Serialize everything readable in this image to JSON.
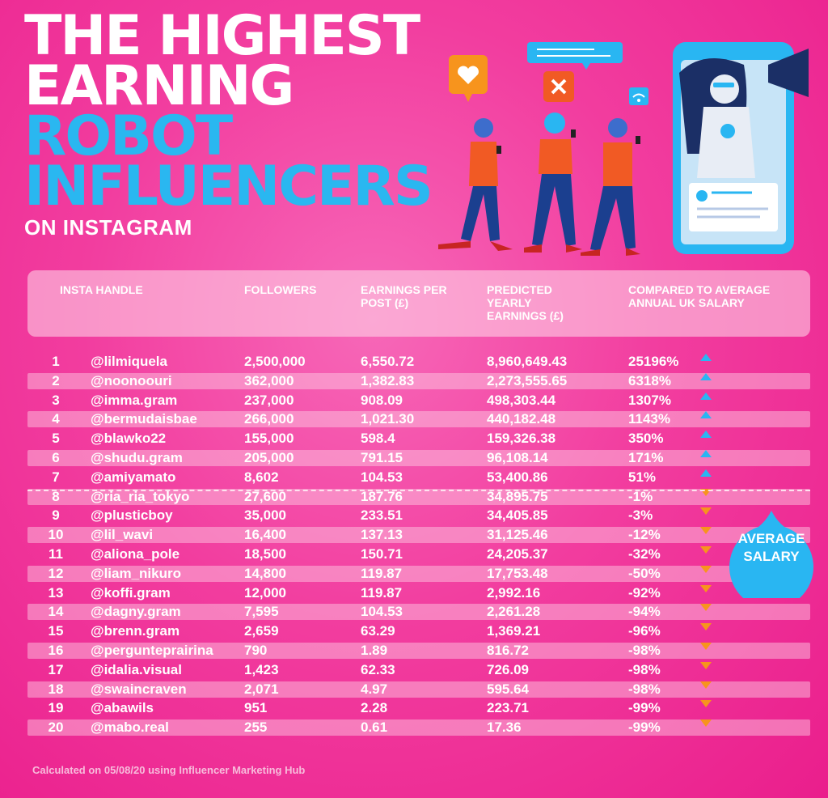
{
  "title": {
    "line1": "THE HIGHEST",
    "line2": "EARNING",
    "line3": "ROBOT",
    "line4": "INFLUENCERS",
    "line5": "ON INSTAGRAM"
  },
  "colors": {
    "background": "#ea1e8c",
    "accent_blue": "#2ab7f0",
    "up_arrow": "#29b6f2",
    "down_arrow": "#f7941d"
  },
  "chart_data": {
    "type": "table",
    "columns": [
      "INSTA HANDLE",
      "FOLLOWERS",
      "EARNINGS PER POST (£)",
      "PREDICTED YEARLY EARNINGS (£)",
      "COMPARED TO AVERAGE ANNUAL UK SALARY"
    ],
    "rows": [
      {
        "rank": "1",
        "handle": "@lilmiquela",
        "followers": "2,500,000",
        "earnings_per_post": "6,550.72",
        "yearly": "8,960,649.43",
        "compared": "25196%",
        "trend": "up"
      },
      {
        "rank": "2",
        "handle": "@noonoouri",
        "followers": "362,000",
        "earnings_per_post": "1,382.83",
        "yearly": "2,273,555.65",
        "compared": "6318%",
        "trend": "up"
      },
      {
        "rank": "3",
        "handle": "@imma.gram",
        "followers": "237,000",
        "earnings_per_post": "908.09",
        "yearly": "498,303.44",
        "compared": "1307%",
        "trend": "up"
      },
      {
        "rank": "4",
        "handle": "@bermudaisbae",
        "followers": "266,000",
        "earnings_per_post": "1,021.30",
        "yearly": "440,182.48",
        "compared": "1143%",
        "trend": "up"
      },
      {
        "rank": "5",
        "handle": "@blawko22",
        "followers": "155,000",
        "earnings_per_post": "598.4",
        "yearly": "159,326.38",
        "compared": "350%",
        "trend": "up"
      },
      {
        "rank": "6",
        "handle": "@shudu.gram",
        "followers": "205,000",
        "earnings_per_post": "791.15",
        "yearly": "96,108.14",
        "compared": "171%",
        "trend": "up"
      },
      {
        "rank": "7",
        "handle": "@amiyamato",
        "followers": "8,602",
        "earnings_per_post": "104.53",
        "yearly": "53,400.86",
        "compared": "51%",
        "trend": "up"
      },
      {
        "rank": "8",
        "handle": "@ria_ria_tokyo",
        "followers": "27,600",
        "earnings_per_post": "187.76",
        "yearly": "34,895.75",
        "compared": "-1%",
        "trend": "down"
      },
      {
        "rank": "9",
        "handle": "@plusticboy",
        "followers": "35,000",
        "earnings_per_post": "233.51",
        "yearly": "34,405.85",
        "compared": "-3%",
        "trend": "down"
      },
      {
        "rank": "10",
        "handle": "@lil_wavi",
        "followers": "16,400",
        "earnings_per_post": "137.13",
        "yearly": "31,125.46",
        "compared": "-12%",
        "trend": "down"
      },
      {
        "rank": "11",
        "handle": "@aliona_pole",
        "followers": "18,500",
        "earnings_per_post": "150.71",
        "yearly": "24,205.37",
        "compared": "-32%",
        "trend": "down"
      },
      {
        "rank": "12",
        "handle": "@liam_nikuro",
        "followers": "14,800",
        "earnings_per_post": "119.87",
        "yearly": "17,753.48",
        "compared": "-50%",
        "trend": "down"
      },
      {
        "rank": "13",
        "handle": "@koffi.gram",
        "followers": "12,000",
        "earnings_per_post": "119.87",
        "yearly": "2,992.16",
        "compared": "-92%",
        "trend": "down"
      },
      {
        "rank": "14",
        "handle": "@dagny.gram",
        "followers": "7,595",
        "earnings_per_post": "104.53",
        "yearly": "2,261.28",
        "compared": "-94%",
        "trend": "down"
      },
      {
        "rank": "15",
        "handle": "@brenn.gram",
        "followers": "2,659",
        "earnings_per_post": "63.29",
        "yearly": "1,369.21",
        "compared": "-96%",
        "trend": "down"
      },
      {
        "rank": "16",
        "handle": "@pergunteprairina",
        "followers": "790",
        "earnings_per_post": "1.89",
        "yearly": "816.72",
        "compared": "-98%",
        "trend": "down"
      },
      {
        "rank": "17",
        "handle": "@idalia.visual",
        "followers": "1,423",
        "earnings_per_post": "62.33",
        "yearly": "726.09",
        "compared": "-98%",
        "trend": "down"
      },
      {
        "rank": "18",
        "handle": "@swaincraven",
        "followers": "2,071",
        "earnings_per_post": "4.97",
        "yearly": "595.64",
        "compared": "-98%",
        "trend": "down"
      },
      {
        "rank": "19",
        "handle": "@abawils",
        "followers": "951",
        "earnings_per_post": "2.28",
        "yearly": "223.71",
        "compared": "-99%",
        "trend": "down"
      },
      {
        "rank": "20",
        "handle": "@mabo.real",
        "followers": "255",
        "earnings_per_post": "0.61",
        "yearly": "17.36",
        "compared": "-99%",
        "trend": "down"
      }
    ]
  },
  "average_label_line1": "AVERAGE",
  "average_label_line2": "SALARY",
  "footnote": "Calculated on 05/08/20 using Influencer Marketing Hub",
  "illustration_icons": [
    "heart-icon",
    "close-icon",
    "wifi-icon",
    "message-icon"
  ]
}
